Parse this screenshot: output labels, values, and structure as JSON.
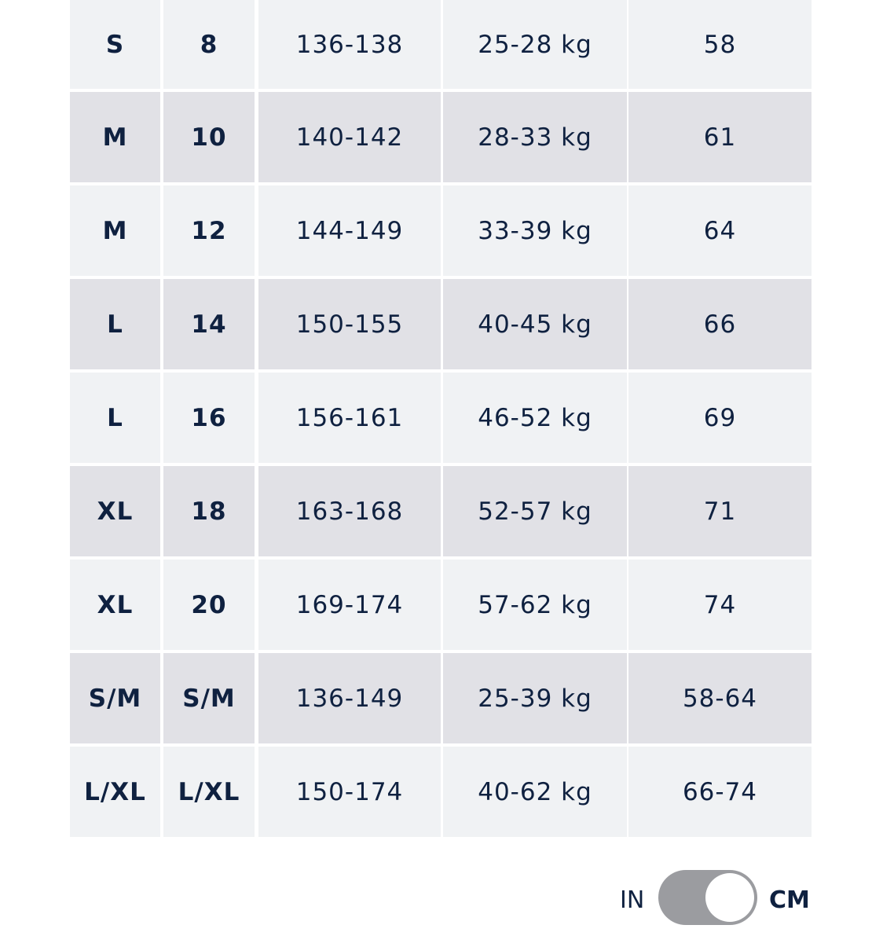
{
  "table": {
    "rows": [
      [
        "S",
        "8",
        "136-138",
        "25-28 kg",
        "58"
      ],
      [
        "M",
        "10",
        "140-142",
        "28-33 kg",
        "61"
      ],
      [
        "M",
        "12",
        "144-149",
        "33-39 kg",
        "64"
      ],
      [
        "L",
        "14",
        "150-155",
        "40-45 kg",
        "66"
      ],
      [
        "L",
        "16",
        "156-161",
        "46-52 kg",
        "69"
      ],
      [
        "XL",
        "18",
        "163-168",
        "52-57 kg",
        "71"
      ],
      [
        "XL",
        "20",
        "169-174",
        "57-62 kg",
        "74"
      ],
      [
        "S/M",
        "S/M",
        "136-149",
        "25-39 kg",
        "58-64"
      ],
      [
        "L/XL",
        "L/XL",
        "150-174",
        "40-62 kg",
        "66-74"
      ]
    ]
  },
  "toggle": {
    "left": "IN",
    "right": "CM"
  }
}
